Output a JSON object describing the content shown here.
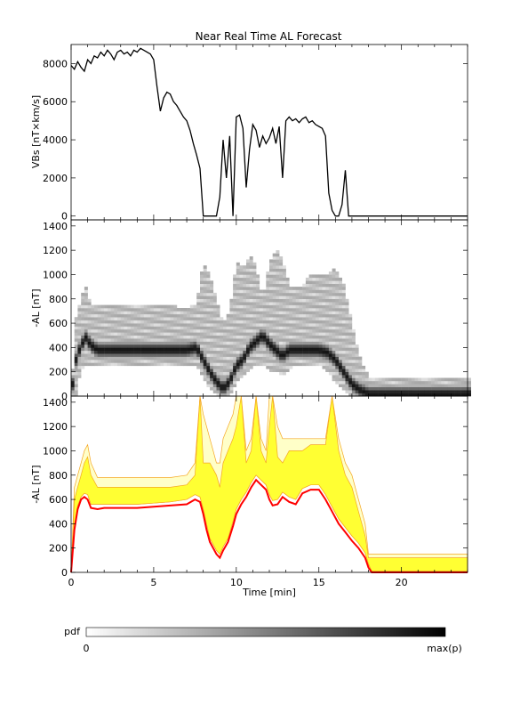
{
  "figure": {
    "title": "Near Real Time AL Forecast"
  },
  "chart_data": [
    {
      "type": "line",
      "panel": "top",
      "ylabel": "VBs [nT×km/s]",
      "xlim": [
        0,
        24
      ],
      "ylim": [
        -200,
        9000
      ],
      "y_ticks": [
        0,
        2000,
        4000,
        6000,
        8000
      ],
      "x_ticks": [
        0,
        5,
        10,
        15,
        20
      ],
      "x": [
        0,
        0.2,
        0.4,
        0.6,
        0.8,
        1.0,
        1.2,
        1.4,
        1.6,
        1.8,
        2.0,
        2.2,
        2.4,
        2.6,
        2.8,
        3.0,
        3.2,
        3.4,
        3.6,
        3.8,
        4.0,
        4.2,
        4.4,
        4.6,
        4.8,
        5.0,
        5.2,
        5.4,
        5.6,
        5.8,
        6.0,
        6.2,
        6.4,
        6.6,
        6.8,
        7.0,
        7.2,
        7.4,
        7.6,
        7.8,
        8.0,
        8.2,
        8.4,
        8.6,
        8.8,
        9.0,
        9.2,
        9.4,
        9.6,
        9.8,
        10.0,
        10.2,
        10.4,
        10.6,
        10.8,
        11.0,
        11.2,
        11.4,
        11.6,
        11.8,
        12.0,
        12.2,
        12.4,
        12.6,
        12.8,
        13.0,
        13.2,
        13.4,
        13.6,
        13.8,
        14.0,
        14.2,
        14.4,
        14.6,
        14.8,
        15.0,
        15.2,
        15.4,
        15.6,
        15.8,
        16.0,
        16.2,
        16.4,
        16.6,
        16.8,
        17.0,
        18.0,
        20.0,
        22.0,
        24.0
      ],
      "values": [
        7900,
        7700,
        8100,
        7800,
        7600,
        8200,
        8000,
        8400,
        8300,
        8600,
        8400,
        8700,
        8500,
        8200,
        8600,
        8700,
        8500,
        8600,
        8400,
        8700,
        8600,
        8800,
        8700,
        8600,
        8500,
        8200,
        6800,
        5500,
        6200,
        6500,
        6400,
        6000,
        5800,
        5500,
        5200,
        5000,
        4500,
        3800,
        3200,
        2500,
        0,
        0,
        0,
        0,
        0,
        1000,
        4000,
        2000,
        4200,
        0,
        5200,
        5300,
        4600,
        1500,
        3500,
        4800,
        4500,
        3600,
        4200,
        3800,
        4100,
        4600,
        3800,
        4700,
        2000,
        5000,
        5200,
        5000,
        5100,
        4900,
        5100,
        5200,
        4900,
        5000,
        4800,
        4700,
        4600,
        4200,
        1200,
        300,
        0,
        0,
        600,
        2400,
        0,
        0,
        0,
        0,
        0,
        0
      ]
    },
    {
      "type": "heatmap",
      "panel": "middle",
      "ylabel": "-AL [nT]",
      "xlim": [
        0,
        24
      ],
      "ylim": [
        0,
        1450
      ],
      "y_ticks": [
        0,
        200,
        400,
        600,
        800,
        1000,
        1200,
        1400
      ],
      "x_ticks": [
        0,
        5,
        10,
        15,
        20
      ],
      "colorbar": {
        "label": "pdf",
        "min_label": "0",
        "max_label": "max(p)"
      },
      "ridge_x": [
        0,
        0.3,
        0.6,
        0.9,
        1.2,
        1.6,
        2.0,
        3.0,
        4.0,
        5.0,
        6.0,
        7.0,
        7.6,
        8.0,
        8.4,
        8.8,
        9.2,
        9.6,
        10.0,
        10.4,
        10.8,
        11.2,
        11.6,
        12.0,
        12.4,
        12.8,
        13.2,
        13.6,
        14.0,
        14.5,
        15.0,
        15.5,
        16.0,
        16.5,
        17.0,
        17.5,
        18.0,
        19.0,
        20.0,
        22.0,
        24.0
      ],
      "ridge_y": [
        0,
        300,
        420,
        480,
        420,
        380,
        380,
        380,
        380,
        380,
        380,
        380,
        400,
        300,
        200,
        120,
        60,
        120,
        250,
        300,
        400,
        450,
        500,
        430,
        380,
        330,
        380,
        380,
        380,
        380,
        380,
        360,
        300,
        200,
        100,
        50,
        20,
        20,
        20,
        20,
        20
      ],
      "band_lower": [
        0,
        50,
        250,
        300,
        300,
        300,
        300,
        300,
        300,
        300,
        300,
        300,
        300,
        200,
        100,
        40,
        0,
        40,
        150,
        200,
        250,
        300,
        300,
        250,
        250,
        200,
        250,
        300,
        300,
        300,
        300,
        250,
        150,
        80,
        40,
        10,
        0,
        0,
        0,
        0,
        0
      ],
      "band_upper": [
        0,
        650,
        800,
        900,
        750,
        750,
        750,
        750,
        750,
        750,
        750,
        700,
        750,
        1100,
        1000,
        800,
        600,
        700,
        1100,
        1050,
        1150,
        1050,
        800,
        1100,
        1200,
        1100,
        900,
        900,
        900,
        1000,
        1000,
        1000,
        1050,
        900,
        600,
        300,
        150,
        150,
        150,
        150,
        150
      ]
    },
    {
      "type": "area",
      "panel": "bottom",
      "ylabel": "-AL [nT]",
      "xlabel": "Time [min]",
      "xlim": [
        0,
        24
      ],
      "ylim": [
        0,
        1450
      ],
      "y_ticks": [
        0,
        200,
        400,
        600,
        800,
        1000,
        1200,
        1400
      ],
      "x_ticks": [
        0,
        5,
        10,
        15,
        20
      ],
      "colors": {
        "band_fill": "#ffff33",
        "band_edge": "#f5a623",
        "outer_band_fill": "#ffffc8",
        "median_line": "#ff0000"
      },
      "x": [
        0,
        0.2,
        0.4,
        0.6,
        0.8,
        1.0,
        1.2,
        1.6,
        2.0,
        3.0,
        4.0,
        5.0,
        6.0,
        7.0,
        7.5,
        7.8,
        8.0,
        8.2,
        8.4,
        8.6,
        8.8,
        9.0,
        9.2,
        9.5,
        9.8,
        10.0,
        10.3,
        10.6,
        10.9,
        11.2,
        11.5,
        11.8,
        12.0,
        12.2,
        12.5,
        12.8,
        13.2,
        13.6,
        14.0,
        14.5,
        15.0,
        15.4,
        15.8,
        16.2,
        16.6,
        17.0,
        17.4,
        17.8,
        18.0,
        18.2,
        20.0,
        22.0,
        24.0
      ],
      "median": [
        0,
        350,
        520,
        600,
        620,
        600,
        530,
        520,
        530,
        530,
        530,
        540,
        550,
        560,
        600,
        580,
        480,
        350,
        250,
        200,
        150,
        120,
        180,
        250,
        380,
        480,
        560,
        620,
        700,
        760,
        720,
        680,
        600,
        550,
        560,
        620,
        580,
        560,
        650,
        680,
        680,
        600,
        500,
        400,
        330,
        260,
        200,
        120,
        40,
        0,
        0,
        0,
        0
      ],
      "band_lower": [
        0,
        400,
        550,
        620,
        650,
        640,
        560,
        560,
        560,
        560,
        560,
        570,
        580,
        600,
        640,
        620,
        520,
        400,
        280,
        230,
        180,
        150,
        210,
        280,
        420,
        520,
        600,
        660,
        740,
        800,
        760,
        720,
        640,
        590,
        600,
        660,
        620,
        600,
        690,
        720,
        720,
        640,
        540,
        440,
        370,
        300,
        240,
        160,
        70,
        10,
        10,
        10,
        10
      ],
      "band_upper": [
        0,
        600,
        700,
        800,
        900,
        950,
        800,
        700,
        700,
        700,
        700,
        700,
        700,
        720,
        800,
        1450,
        900,
        900,
        900,
        850,
        800,
        700,
        900,
        1000,
        1100,
        1200,
        1450,
        900,
        1000,
        1450,
        1000,
        900,
        1200,
        1450,
        950,
        900,
        1000,
        1000,
        1000,
        1050,
        1050,
        1050,
        1450,
        1000,
        800,
        700,
        500,
        300,
        120,
        120,
        120,
        120,
        120
      ],
      "outer_upper": [
        0,
        700,
        800,
        900,
        1000,
        1050,
        900,
        780,
        780,
        780,
        780,
        780,
        780,
        800,
        900,
        1450,
        1300,
        1200,
        1100,
        1000,
        900,
        900,
        1100,
        1200,
        1300,
        1450,
        1450,
        1000,
        1100,
        1450,
        1100,
        1000,
        1450,
        1450,
        1200,
        1100,
        1100,
        1100,
        1100,
        1100,
        1100,
        1100,
        1450,
        1100,
        900,
        800,
        600,
        400,
        150,
        150,
        150,
        150,
        150
      ]
    }
  ]
}
